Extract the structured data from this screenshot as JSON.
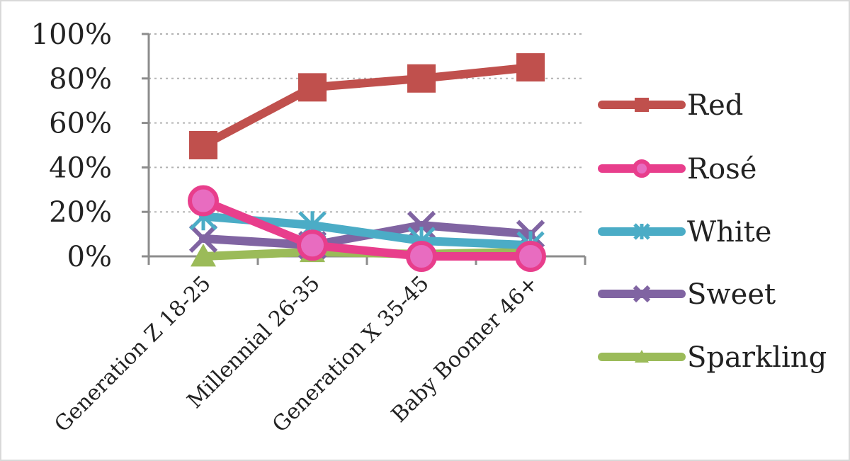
{
  "chart_data": {
    "type": "line",
    "title": "",
    "xlabel": "",
    "ylabel": "",
    "categories": [
      "Generation Z 18-25",
      "Millennial 26-35",
      "Generation X 35-45",
      "Baby Boomer 46+"
    ],
    "ylim": [
      0,
      100
    ],
    "y_ticks": [
      "0%",
      "20%",
      "40%",
      "60%",
      "80%",
      "100%"
    ],
    "grid": true,
    "legend_position": "right",
    "series": [
      {
        "name": "Red",
        "values": [
          50,
          76,
          80,
          85
        ],
        "color": "#c0504d",
        "marker": "square"
      },
      {
        "name": "Rosé",
        "values": [
          25,
          5,
          0,
          0
        ],
        "color": "#e83e8c",
        "marker": "circle"
      },
      {
        "name": "White",
        "values": [
          18,
          14,
          7,
          5
        ],
        "color": "#4bacc6",
        "marker": "star"
      },
      {
        "name": "Sweet",
        "values": [
          8,
          5,
          14,
          10
        ],
        "color": "#8064a2",
        "marker": "x"
      },
      {
        "name": "Sparkling",
        "values": [
          0,
          2,
          1,
          2
        ],
        "color": "#9bbb59",
        "marker": "triangle"
      }
    ]
  }
}
